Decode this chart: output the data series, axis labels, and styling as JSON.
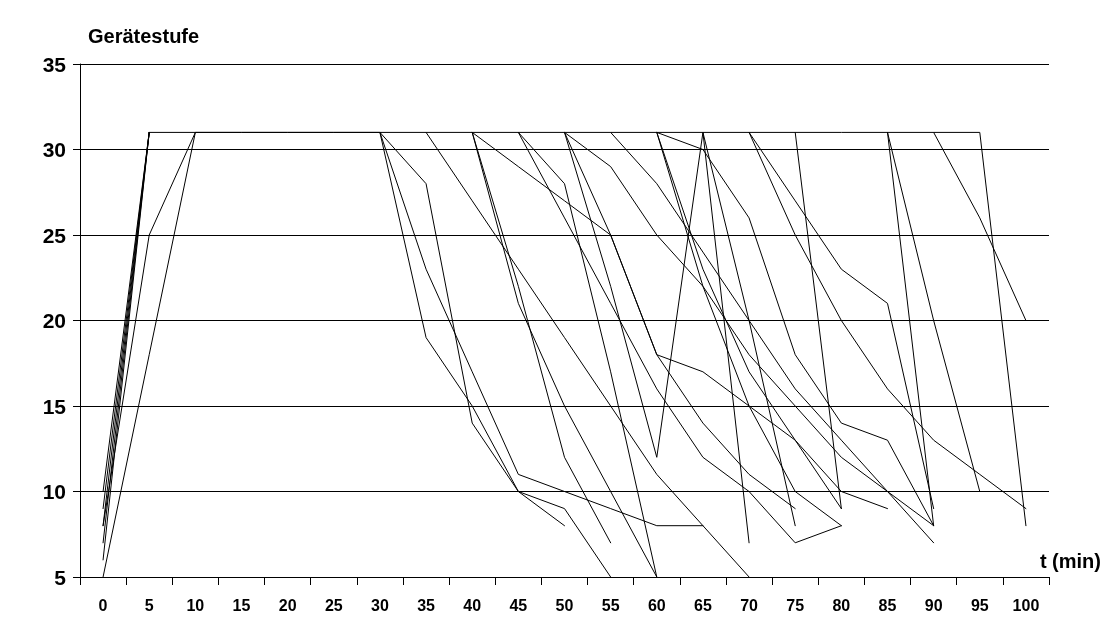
{
  "chart_data": {
    "type": "line",
    "xlabel": "t (min)",
    "ylabel": "Gerätestufe",
    "categories": [
      "0",
      "5",
      "10",
      "15",
      "20",
      "25",
      "30",
      "35",
      "40",
      "45",
      "50",
      "55",
      "60",
      "65",
      "70",
      "75",
      "80",
      "85",
      "90",
      "95",
      "100"
    ],
    "ylim": [
      5,
      35
    ],
    "yticks": [
      5,
      10,
      15,
      20,
      25,
      30,
      35
    ],
    "grid": "y",
    "marker": "none",
    "line_style": "solid",
    "series": [
      {
        "color": "#000000",
        "values": [
          5,
          18,
          31,
          31,
          31,
          31,
          31,
          28,
          14,
          10,
          8,
          null,
          null,
          null,
          null,
          null,
          null,
          null,
          null,
          null,
          null
        ]
      },
      {
        "color": "#000000",
        "values": [
          8,
          25,
          31,
          null,
          null,
          null,
          null,
          null,
          null,
          null,
          null,
          null,
          null,
          null,
          null,
          null,
          null,
          null,
          null,
          null,
          null
        ]
      },
      {
        "color": "#000000",
        "values": [
          null,
          null,
          null,
          null,
          null,
          null,
          31,
          19,
          15,
          10,
          9,
          5,
          null,
          null,
          null,
          null,
          null,
          null,
          null,
          null,
          null
        ]
      },
      {
        "color": "#000000",
        "values": [
          6,
          31,
          null,
          null,
          null,
          null,
          null,
          null,
          null,
          null,
          null,
          null,
          null,
          null,
          null,
          null,
          null,
          null,
          null,
          null,
          null
        ]
      },
      {
        "color": "#000000",
        "values": [
          null,
          null,
          null,
          null,
          null,
          null,
          31,
          23,
          17,
          11,
          10,
          9,
          8,
          8,
          null,
          null,
          null,
          null,
          null,
          null,
          null
        ]
      },
      {
        "color": "#000000",
        "values": [
          7,
          31,
          null,
          null,
          null,
          null,
          null,
          null,
          null,
          null,
          null,
          null,
          null,
          null,
          null,
          null,
          null,
          null,
          null,
          null,
          null
        ]
      },
      {
        "color": "#000000",
        "values": [
          9,
          31,
          null,
          null,
          null,
          null,
          null,
          null,
          null,
          null,
          null,
          null,
          null,
          null,
          null,
          null,
          null,
          null,
          null,
          null,
          null
        ]
      },
      {
        "color": "#000000",
        "values": [
          10,
          31,
          null,
          null,
          null,
          null,
          null,
          null,
          null,
          null,
          null,
          null,
          null,
          null,
          null,
          null,
          null,
          null,
          null,
          null,
          null
        ]
      },
      {
        "color": "#000000",
        "values": [
          8,
          31,
          null,
          null,
          null,
          null,
          null,
          null,
          null,
          null,
          null,
          null,
          null,
          null,
          null,
          null,
          null,
          null,
          null,
          null,
          null
        ]
      },
      {
        "color": "#000000",
        "values": [
          null,
          null,
          null,
          null,
          null,
          null,
          null,
          31,
          27,
          23,
          19,
          15,
          11,
          8,
          5,
          null,
          null,
          null,
          null,
          null,
          null
        ]
      },
      {
        "color": "#000000",
        "values": [
          null,
          null,
          null,
          null,
          null,
          null,
          null,
          null,
          31,
          29,
          27,
          25,
          18,
          17,
          15,
          13,
          9,
          null,
          null,
          null,
          null
        ]
      },
      {
        "color": "#000000",
        "values": [
          null,
          null,
          null,
          null,
          null,
          null,
          null,
          null,
          31,
          22,
          12,
          7,
          null,
          null,
          null,
          null,
          null,
          null,
          null,
          null,
          null
        ]
      },
      {
        "color": "#000000",
        "values": [
          null,
          null,
          null,
          null,
          null,
          null,
          null,
          null,
          31,
          21,
          15,
          10,
          5,
          null,
          null,
          null,
          null,
          null,
          null,
          null,
          null
        ]
      },
      {
        "color": "#000000",
        "values": [
          null,
          null,
          null,
          null,
          null,
          null,
          null,
          null,
          null,
          31,
          28,
          17,
          5,
          null,
          null,
          null,
          null,
          null,
          null,
          null,
          null
        ]
      },
      {
        "color": "#000000",
        "values": [
          null,
          null,
          null,
          null,
          null,
          null,
          null,
          null,
          null,
          31,
          26,
          21,
          16,
          12,
          10,
          7,
          8,
          null,
          null,
          null,
          null
        ]
      },
      {
        "color": "#000000",
        "values": [
          null,
          null,
          null,
          null,
          null,
          null,
          null,
          null,
          null,
          null,
          31,
          29,
          25,
          22,
          18,
          15,
          12,
          10,
          8,
          null,
          null
        ]
      },
      {
        "color": "#000000",
        "values": [
          null,
          null,
          null,
          null,
          null,
          null,
          null,
          null,
          null,
          null,
          31,
          25,
          18,
          14,
          11,
          9,
          null,
          null,
          null,
          null,
          null
        ]
      },
      {
        "color": "#000000",
        "values": [
          null,
          null,
          null,
          null,
          null,
          null,
          null,
          null,
          null,
          null,
          null,
          31,
          28,
          24,
          20,
          16,
          13,
          10,
          7,
          null,
          null
        ]
      },
      {
        "color": "#000000",
        "values": [
          null,
          null,
          null,
          null,
          null,
          null,
          null,
          null,
          null,
          null,
          null,
          null,
          31,
          30,
          26,
          18,
          14,
          13,
          8,
          null,
          null
        ]
      },
      {
        "color": "#000000",
        "values": [
          null,
          null,
          null,
          null,
          null,
          null,
          null,
          null,
          null,
          null,
          null,
          null,
          31,
          23,
          17,
          13,
          10,
          9,
          null,
          null,
          null
        ]
      },
      {
        "color": "#000000",
        "values": [
          null,
          null,
          null,
          null,
          null,
          null,
          null,
          null,
          null,
          null,
          null,
          null,
          31,
          22,
          15,
          10,
          8,
          null,
          null,
          null,
          null
        ]
      },
      {
        "color": "#000000",
        "values": [
          null,
          null,
          null,
          null,
          null,
          null,
          null,
          null,
          null,
          null,
          31,
          22,
          12,
          31,
          7,
          null,
          null,
          null,
          null,
          null,
          null
        ]
      },
      {
        "color": "#000000",
        "values": [
          null,
          null,
          null,
          null,
          null,
          null,
          null,
          null,
          null,
          null,
          null,
          null,
          null,
          null,
          31,
          27,
          23,
          21,
          9,
          null,
          null
        ]
      },
      {
        "color": "#000000",
        "values": [
          null,
          null,
          null,
          null,
          null,
          null,
          null,
          null,
          null,
          null,
          null,
          null,
          null,
          null,
          31,
          25,
          20,
          16,
          13,
          11,
          9
        ]
      },
      {
        "color": "#000000",
        "values": [
          null,
          null,
          null,
          null,
          null,
          null,
          null,
          null,
          null,
          null,
          null,
          null,
          null,
          null,
          null,
          31,
          9,
          null,
          null,
          null,
          null
        ]
      },
      {
        "color": "#000000",
        "values": [
          null,
          null,
          null,
          null,
          null,
          null,
          null,
          null,
          null,
          null,
          null,
          null,
          null,
          null,
          null,
          null,
          null,
          31,
          8,
          null,
          null
        ]
      },
      {
        "color": "#000000",
        "values": [
          null,
          null,
          null,
          null,
          null,
          null,
          null,
          null,
          null,
          null,
          null,
          null,
          null,
          null,
          null,
          null,
          null,
          31,
          20,
          10,
          null
        ]
      },
      {
        "color": "#000000",
        "values": [
          null,
          null,
          null,
          null,
          null,
          null,
          null,
          null,
          null,
          null,
          null,
          null,
          null,
          null,
          null,
          null,
          null,
          null,
          31,
          26,
          20
        ]
      },
      {
        "color": "#000000",
        "values": [
          null,
          31,
          31,
          31,
          31,
          31,
          31,
          31,
          31,
          31,
          31,
          31,
          31,
          31,
          31,
          31,
          31,
          31,
          31,
          31,
          8
        ]
      },
      {
        "color": "#000000",
        "values": [
          null,
          null,
          null,
          null,
          null,
          null,
          null,
          null,
          null,
          null,
          null,
          null,
          null,
          31,
          20,
          8,
          null,
          null,
          null,
          null,
          null
        ]
      }
    ]
  }
}
